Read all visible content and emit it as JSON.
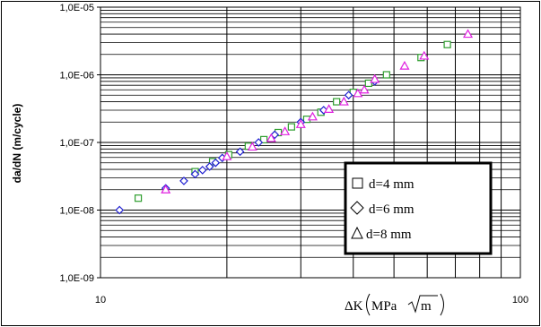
{
  "chart_data": {
    "type": "scatter",
    "xscale": "log",
    "yscale": "log",
    "xlim": [
      10,
      100
    ],
    "ylim": [
      1e-09,
      1e-05
    ],
    "grid": true,
    "legend_position": "bottom-right",
    "xlabel_prefix": "ΔK",
    "xlabel_unit": "MPa",
    "xlabel_sqrt": "m",
    "ylabel": "da/dN  (m/cycle)",
    "x_tick_labels": [
      "10",
      "100"
    ],
    "y_tick_labels": [
      "1,0E-09",
      "1,0E-08",
      "1,0E-07",
      "1,0E-06",
      "1,0E-05"
    ],
    "series": [
      {
        "name": "d=4 mm",
        "marker": "square",
        "color": "#2e9e2e",
        "points": [
          [
            12.3,
            1.5e-08
          ],
          [
            16.8,
            3.7e-08
          ],
          [
            18.5,
            5.2e-08
          ],
          [
            20.2,
            6.6e-08
          ],
          [
            22.5,
            8.8e-08
          ],
          [
            24.5,
            1.1e-07
          ],
          [
            26.5,
            1.4e-07
          ],
          [
            28.5,
            1.7e-07
          ],
          [
            31.0,
            2.2e-07
          ],
          [
            33.5,
            2.8e-07
          ],
          [
            36.5,
            4e-07
          ],
          [
            40.0,
            5.5e-07
          ],
          [
            43.5,
            7.5e-07
          ],
          [
            48.0,
            1e-06
          ],
          [
            58.0,
            1.8e-06
          ],
          [
            67.0,
            2.8e-06
          ]
        ]
      },
      {
        "name": "d=6 mm",
        "marker": "diamond",
        "color": "#1f1fd0",
        "points": [
          [
            11.1,
            1e-08
          ],
          [
            14.3,
            2.1e-08
          ],
          [
            15.8,
            2.7e-08
          ],
          [
            16.8,
            3.4e-08
          ],
          [
            17.5,
            3.9e-08
          ],
          [
            18.2,
            4.4e-08
          ],
          [
            18.8,
            5e-08
          ],
          [
            19.5,
            5.9e-08
          ],
          [
            21.5,
            7.3e-08
          ],
          [
            23.8,
            1e-07
          ],
          [
            26.0,
            1.3e-07
          ],
          [
            30.0,
            2e-07
          ],
          [
            34.0,
            3e-07
          ],
          [
            39.0,
            5e-07
          ],
          [
            45.0,
            8e-07
          ]
        ]
      },
      {
        "name": "d=8 mm",
        "marker": "triangle",
        "color": "#e020e0",
        "points": [
          [
            14.3,
            2e-08
          ],
          [
            20.0,
            6.2e-08
          ],
          [
            23.0,
            8.6e-08
          ],
          [
            25.5,
            1.15e-07
          ],
          [
            27.5,
            1.45e-07
          ],
          [
            30.0,
            1.85e-07
          ],
          [
            32.0,
            2.4e-07
          ],
          [
            35.0,
            3.1e-07
          ],
          [
            38.0,
            4e-07
          ],
          [
            41.0,
            5.3e-07
          ],
          [
            42.5,
            6e-07
          ],
          [
            45.0,
            8.6e-07
          ],
          [
            53.0,
            1.35e-06
          ],
          [
            59.0,
            1.9e-06
          ],
          [
            75.0,
            4e-06
          ]
        ]
      }
    ]
  }
}
